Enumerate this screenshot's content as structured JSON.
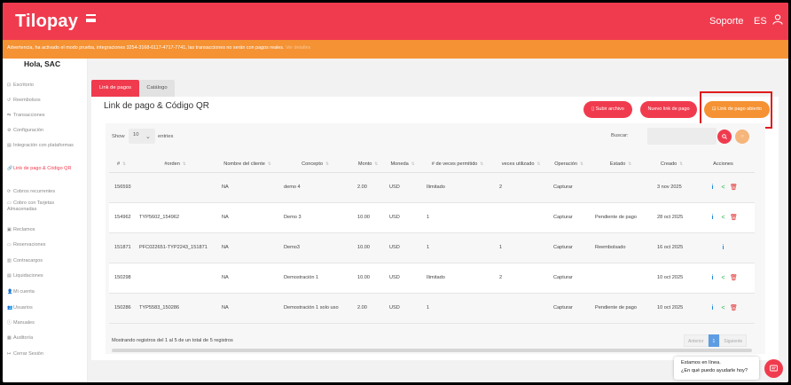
{
  "header": {
    "logo": "Tilopay",
    "soporte": "Soporte",
    "lang": "ES",
    "icons": {
      "menu": "hamburger-icon",
      "user": "user-icon"
    }
  },
  "warning": {
    "text": "Advertencia, ha activado el modo prueba, integraciones 3254-3168-6117-4717-7741, las transacciones no serán con pagos reales.",
    "link": "Ver detalles"
  },
  "sidebar": {
    "greeting": "Hola, SAC",
    "items": [
      {
        "label": "Escritorio",
        "icon": "dashboard-icon",
        "glyph": "⊡"
      },
      {
        "label": "Reembolsos",
        "icon": "refund-icon",
        "glyph": "↺"
      },
      {
        "label": "Transacciones",
        "icon": "transactions-icon",
        "glyph": "⇆"
      },
      {
        "label": "Configuración",
        "icon": "gear-icon",
        "glyph": "⚙"
      },
      {
        "label": "Integración con plataformas",
        "icon": "integration-icon",
        "glyph": "▤"
      },
      {
        "label": "Link de pago & Código QR",
        "icon": "link-icon",
        "glyph": "🔗"
      },
      {
        "label": "Cobros recurrentes",
        "icon": "recurring-icon",
        "glyph": "⟳"
      },
      {
        "label": "Cobro con Tarjetas Almacenadas",
        "icon": "card-icon",
        "glyph": "▭"
      },
      {
        "label": "Reclamos",
        "icon": "claims-icon",
        "glyph": "▣"
      },
      {
        "label": "Reservaciones",
        "icon": "reservations-icon",
        "glyph": "▭"
      },
      {
        "label": "Contracargos",
        "icon": "chargeback-icon",
        "glyph": "▥"
      },
      {
        "label": "Liquidaciones",
        "icon": "settlement-icon",
        "glyph": "▤"
      },
      {
        "label": "Mi cuenta",
        "icon": "account-icon",
        "glyph": "👤"
      },
      {
        "label": "Usuarios",
        "icon": "users-icon",
        "glyph": "👥"
      },
      {
        "label": "Manuales",
        "icon": "manual-icon",
        "glyph": "ⓘ"
      },
      {
        "label": "Auditoría",
        "icon": "audit-icon",
        "glyph": "▦"
      },
      {
        "label": "Cerrar Sesión",
        "icon": "logout-icon",
        "glyph": "↦"
      }
    ]
  },
  "tabs": [
    {
      "label": "Link de pagos"
    },
    {
      "label": "Catálogo"
    }
  ],
  "card": {
    "title": "Link de pago & Código QR",
    "buttons": {
      "upload": "Subir archivo",
      "new": "Nuevo link de pago",
      "open": "Link de pago abierto"
    }
  },
  "table_controls": {
    "show": "Show",
    "entries_value": "10",
    "entries": "entries",
    "search_label": "Buscar:"
  },
  "table": {
    "columns": [
      "#",
      "#orden",
      "Nombre del cliente",
      "Concepto",
      "Monto",
      "Moneda",
      "# de veces permitido",
      "veces utilizado",
      "Operación",
      "Estado",
      "Creado",
      "Acciones"
    ],
    "rows": [
      {
        "id": "156593",
        "orden": "",
        "cliente": "NA",
        "concepto": "demo 4",
        "monto": "2.00",
        "moneda": "USD",
        "permitido": "Ilimitado",
        "utilizado": "2",
        "operacion": "Capturar",
        "estado": "",
        "creado": "3 nov 2025",
        "actions": [
          "info",
          "share",
          "delete"
        ]
      },
      {
        "id": "154962",
        "orden": "TYP5602_154962",
        "cliente": "NA",
        "concepto": "Demo 3",
        "monto": "10.00",
        "moneda": "USD",
        "permitido": "1",
        "utilizado": "",
        "operacion": "Capturar",
        "estado": "Pendiente de pago",
        "creado": "28 oct 2025",
        "actions": [
          "info",
          "share",
          "delete"
        ]
      },
      {
        "id": "151871",
        "orden": "PFC022651-TYP2243_151871",
        "cliente": "NA",
        "concepto": "Demo3",
        "monto": "10.00",
        "moneda": "USD",
        "permitido": "1",
        "utilizado": "1",
        "operacion": "Capturar",
        "estado": "Reembolsado",
        "creado": "16 oct 2025",
        "actions": [
          "info"
        ]
      },
      {
        "id": "150298",
        "orden": "",
        "cliente": "NA",
        "concepto": "Demostración 1",
        "monto": "10.00",
        "moneda": "USD",
        "permitido": "Ilimitado",
        "utilizado": "2",
        "operacion": "Capturar",
        "estado": "",
        "creado": "10 oct 2025",
        "actions": [
          "info",
          "share",
          "delete"
        ]
      },
      {
        "id": "150286",
        "orden": "TYP5583_150286",
        "cliente": "NA",
        "concepto": "Demostración 1 solo uso",
        "monto": "2.00",
        "moneda": "USD",
        "permitido": "1",
        "utilizado": "",
        "operacion": "Capturar",
        "estado": "Pendiente de pago",
        "creado": "10 oct 2025",
        "actions": [
          "info",
          "share",
          "delete"
        ]
      }
    ],
    "footer": "Mostrando registros del 1 al 5 de un total de 5 registros",
    "pager": {
      "prev": "Anterior",
      "current": "1",
      "next": "Siguiente"
    }
  },
  "chat": {
    "line1": "Estamos en línea.",
    "line2": "¿En qué puedo ayudarle hoy?"
  },
  "colors": {
    "brand": "#f03b4e",
    "accent": "#f59233",
    "info": "#1a84d8",
    "share": "#2db34a",
    "delete": "#e03030"
  }
}
